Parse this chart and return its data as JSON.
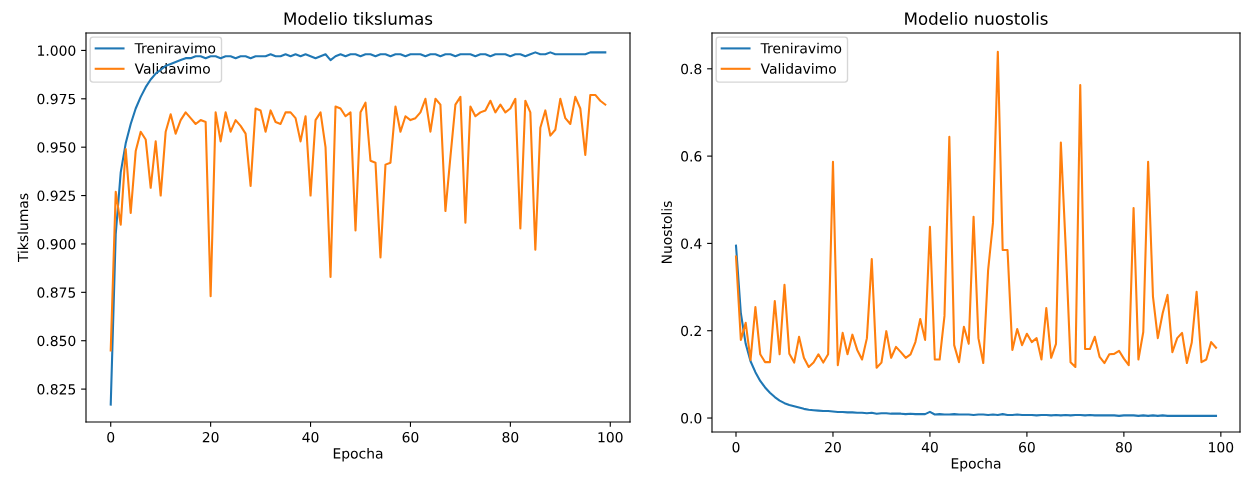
{
  "chart_data": [
    {
      "type": "line",
      "title": "Modelio tikslumas",
      "xlabel": "Epocha",
      "ylabel": "Tikslumas",
      "legend": "top left",
      "grid": false,
      "line_style": "solid",
      "x": [
        0,
        1,
        2,
        3,
        4,
        5,
        6,
        7,
        8,
        9,
        10,
        11,
        12,
        13,
        14,
        15,
        16,
        17,
        18,
        19,
        20,
        21,
        22,
        23,
        24,
        25,
        26,
        27,
        28,
        29,
        30,
        31,
        32,
        33,
        34,
        35,
        36,
        37,
        38,
        39,
        40,
        41,
        42,
        43,
        44,
        45,
        46,
        47,
        48,
        49,
        50,
        51,
        52,
        53,
        54,
        55,
        56,
        57,
        58,
        59,
        60,
        61,
        62,
        63,
        64,
        65,
        66,
        67,
        68,
        69,
        70,
        71,
        72,
        73,
        74,
        75,
        76,
        77,
        78,
        79,
        80,
        81,
        82,
        83,
        84,
        85,
        86,
        87,
        88,
        89,
        90,
        91,
        92,
        93,
        94,
        95,
        96,
        97,
        98,
        99
      ],
      "xlim": [
        -4.95,
        103.95
      ],
      "xticks": [
        0,
        20,
        40,
        60,
        80,
        100
      ],
      "ylim": [
        0.808,
        1.009
      ],
      "yticks": [
        {
          "value": 0.825,
          "label": "0.825"
        },
        {
          "value": 0.85,
          "label": "0.850"
        },
        {
          "value": 0.875,
          "label": "0.875"
        },
        {
          "value": 0.9,
          "label": "0.900"
        },
        {
          "value": 0.925,
          "label": "0.925"
        },
        {
          "value": 0.95,
          "label": "0.950"
        },
        {
          "value": 0.975,
          "label": "0.975"
        },
        {
          "value": 1.0,
          "label": "1.000"
        }
      ],
      "series": [
        {
          "name": "Treniravimo",
          "color": "#1f77b4",
          "values": [
            0.817,
            0.905,
            0.937,
            0.952,
            0.962,
            0.97,
            0.976,
            0.981,
            0.985,
            0.988,
            0.99,
            0.992,
            0.993,
            0.994,
            0.995,
            0.996,
            0.996,
            0.997,
            0.997,
            0.996,
            0.997,
            0.997,
            0.996,
            0.997,
            0.997,
            0.996,
            0.997,
            0.997,
            0.996,
            0.997,
            0.997,
            0.997,
            0.998,
            0.997,
            0.997,
            0.998,
            0.997,
            0.998,
            0.997,
            0.998,
            0.997,
            0.996,
            0.997,
            0.998,
            0.995,
            0.997,
            0.998,
            0.997,
            0.998,
            0.998,
            0.997,
            0.998,
            0.998,
            0.997,
            0.998,
            0.998,
            0.997,
            0.998,
            0.998,
            0.997,
            0.998,
            0.998,
            0.998,
            0.997,
            0.998,
            0.998,
            0.997,
            0.998,
            0.998,
            0.997,
            0.998,
            0.998,
            0.998,
            0.997,
            0.998,
            0.998,
            0.997,
            0.998,
            0.998,
            0.998,
            0.997,
            0.998,
            0.998,
            0.997,
            0.998,
            0.999,
            0.998,
            0.998,
            0.999,
            0.998,
            0.998,
            0.998,
            0.998,
            0.998,
            0.998,
            0.998,
            0.999,
            0.999,
            0.999,
            0.999
          ]
        },
        {
          "name": "Validavimo",
          "color": "#ff7f0e",
          "values": [
            0.845,
            0.927,
            0.91,
            0.949,
            0.916,
            0.948,
            0.958,
            0.954,
            0.929,
            0.953,
            0.925,
            0.958,
            0.967,
            0.957,
            0.964,
            0.968,
            0.965,
            0.962,
            0.964,
            0.963,
            0.873,
            0.968,
            0.953,
            0.968,
            0.958,
            0.964,
            0.961,
            0.957,
            0.93,
            0.97,
            0.969,
            0.958,
            0.969,
            0.963,
            0.962,
            0.968,
            0.968,
            0.965,
            0.953,
            0.966,
            0.925,
            0.964,
            0.968,
            0.95,
            0.883,
            0.971,
            0.97,
            0.966,
            0.968,
            0.907,
            0.968,
            0.973,
            0.943,
            0.942,
            0.893,
            0.941,
            0.942,
            0.971,
            0.958,
            0.966,
            0.964,
            0.965,
            0.968,
            0.975,
            0.958,
            0.975,
            0.972,
            0.917,
            0.945,
            0.972,
            0.976,
            0.911,
            0.971,
            0.966,
            0.968,
            0.969,
            0.974,
            0.968,
            0.972,
            0.968,
            0.97,
            0.975,
            0.908,
            0.974,
            0.968,
            0.897,
            0.96,
            0.969,
            0.956,
            0.959,
            0.975,
            0.965,
            0.962,
            0.976,
            0.97,
            0.946,
            0.977,
            0.977,
            0.974,
            0.972
          ]
        }
      ]
    },
    {
      "type": "line",
      "title": "Modelio nuostolis",
      "xlabel": "Epocha",
      "ylabel": "Nuostolis",
      "legend": "top left",
      "grid": false,
      "line_style": "solid",
      "x": [
        0,
        1,
        2,
        3,
        4,
        5,
        6,
        7,
        8,
        9,
        10,
        11,
        12,
        13,
        14,
        15,
        16,
        17,
        18,
        19,
        20,
        21,
        22,
        23,
        24,
        25,
        26,
        27,
        28,
        29,
        30,
        31,
        32,
        33,
        34,
        35,
        36,
        37,
        38,
        39,
        40,
        41,
        42,
        43,
        44,
        45,
        46,
        47,
        48,
        49,
        50,
        51,
        52,
        53,
        54,
        55,
        56,
        57,
        58,
        59,
        60,
        61,
        62,
        63,
        64,
        65,
        66,
        67,
        68,
        69,
        70,
        71,
        72,
        73,
        74,
        75,
        76,
        77,
        78,
        79,
        80,
        81,
        82,
        83,
        84,
        85,
        86,
        87,
        88,
        89,
        90,
        91,
        92,
        93,
        94,
        95,
        96,
        97,
        98,
        99
      ],
      "xlim": [
        -4.95,
        103.95
      ],
      "xticks": [
        0,
        20,
        40,
        60,
        80,
        100
      ],
      "ylim": [
        -0.032,
        0.882
      ],
      "yticks": [
        {
          "value": 0.0,
          "label": "0.0"
        },
        {
          "value": 0.2,
          "label": "0.2"
        },
        {
          "value": 0.4,
          "label": "0.4"
        },
        {
          "value": 0.6,
          "label": "0.6"
        },
        {
          "value": 0.8,
          "label": "0.8"
        }
      ],
      "series": [
        {
          "name": "Treniravimo",
          "color": "#1f77b4",
          "values": [
            0.395,
            0.24,
            0.17,
            0.13,
            0.105,
            0.085,
            0.07,
            0.058,
            0.048,
            0.04,
            0.034,
            0.03,
            0.027,
            0.024,
            0.021,
            0.019,
            0.018,
            0.017,
            0.016,
            0.016,
            0.015,
            0.014,
            0.014,
            0.013,
            0.013,
            0.012,
            0.012,
            0.011,
            0.012,
            0.01,
            0.011,
            0.011,
            0.01,
            0.01,
            0.01,
            0.009,
            0.01,
            0.009,
            0.009,
            0.009,
            0.014,
            0.008,
            0.009,
            0.008,
            0.008,
            0.009,
            0.008,
            0.008,
            0.008,
            0.007,
            0.008,
            0.008,
            0.007,
            0.008,
            0.007,
            0.009,
            0.007,
            0.007,
            0.008,
            0.007,
            0.007,
            0.007,
            0.006,
            0.007,
            0.007,
            0.006,
            0.007,
            0.006,
            0.007,
            0.006,
            0.007,
            0.007,
            0.006,
            0.007,
            0.006,
            0.006,
            0.006,
            0.006,
            0.006,
            0.005,
            0.006,
            0.006,
            0.006,
            0.005,
            0.006,
            0.005,
            0.006,
            0.005,
            0.006,
            0.005,
            0.005,
            0.005,
            0.005,
            0.005,
            0.005,
            0.005,
            0.005,
            0.005,
            0.005,
            0.005
          ]
        },
        {
          "name": "Validavimo",
          "color": "#ff7f0e",
          "values": [
            0.37,
            0.179,
            0.218,
            0.133,
            0.254,
            0.146,
            0.128,
            0.128,
            0.268,
            0.146,
            0.305,
            0.147,
            0.127,
            0.186,
            0.138,
            0.117,
            0.127,
            0.146,
            0.127,
            0.146,
            0.587,
            0.121,
            0.195,
            0.146,
            0.191,
            0.156,
            0.134,
            0.183,
            0.364,
            0.115,
            0.127,
            0.199,
            0.138,
            0.163,
            0.151,
            0.138,
            0.146,
            0.174,
            0.227,
            0.179,
            0.438,
            0.134,
            0.134,
            0.234,
            0.644,
            0.167,
            0.128,
            0.209,
            0.17,
            0.461,
            0.183,
            0.126,
            0.339,
            0.447,
            0.839,
            0.385,
            0.385,
            0.156,
            0.204,
            0.167,
            0.193,
            0.174,
            0.183,
            0.134,
            0.252,
            0.138,
            0.17,
            0.631,
            0.392,
            0.128,
            0.117,
            0.763,
            0.158,
            0.158,
            0.186,
            0.14,
            0.126,
            0.146,
            0.147,
            0.154,
            0.136,
            0.121,
            0.481,
            0.134,
            0.197,
            0.587,
            0.278,
            0.183,
            0.24,
            0.282,
            0.151,
            0.183,
            0.195,
            0.126,
            0.173,
            0.289,
            0.128,
            0.134,
            0.174,
            0.161
          ]
        }
      ]
    }
  ]
}
